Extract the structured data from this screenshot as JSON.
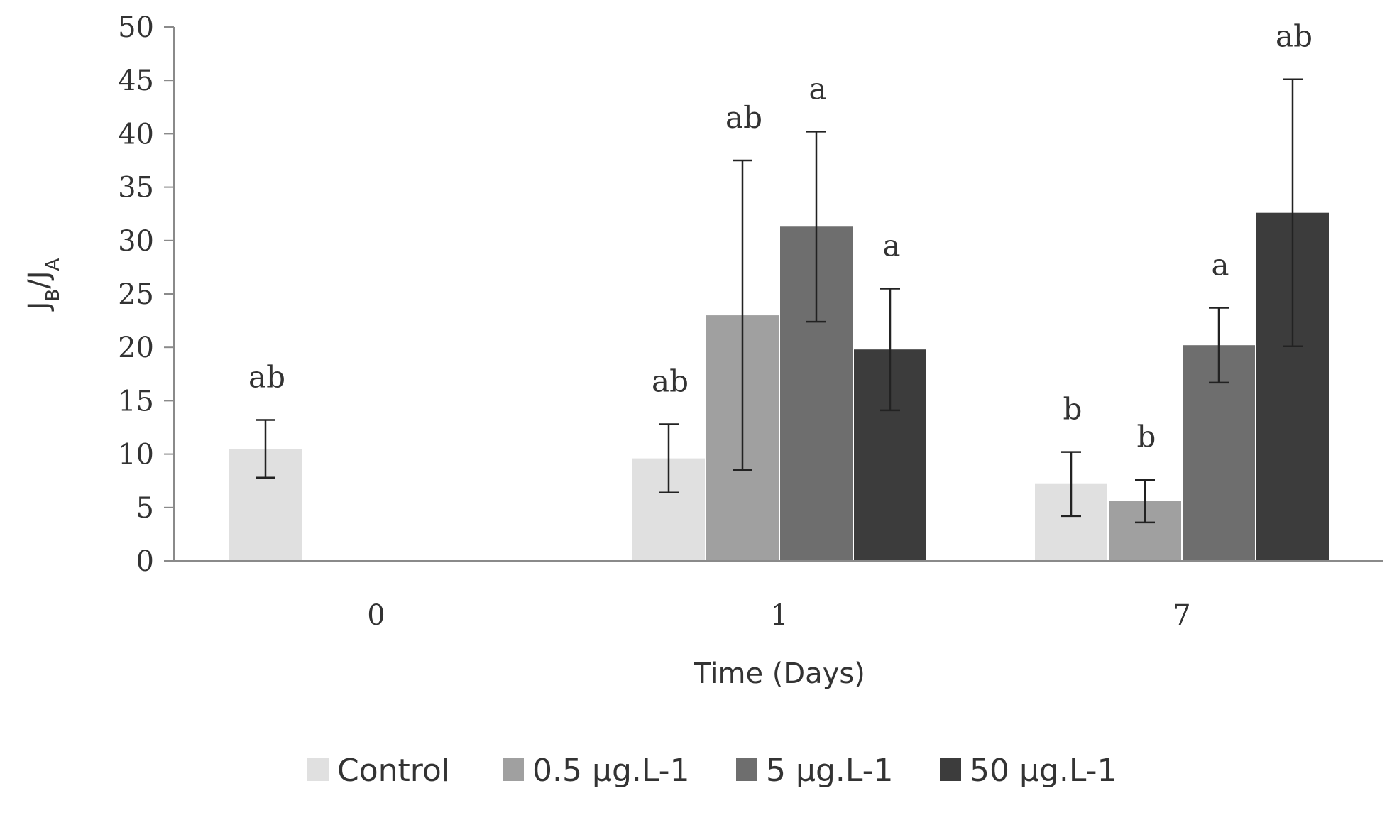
{
  "chart_data": {
    "type": "bar",
    "xlabel": "Time (Days)",
    "ylabel_main": "J",
    "ylabel_sub1": "B",
    "ylabel_slash": "/",
    "ylabel_sub2": "A",
    "ylim": [
      0,
      50
    ],
    "yticks": [
      0,
      5,
      10,
      15,
      20,
      25,
      30,
      35,
      40,
      45,
      50
    ],
    "categories": [
      "0",
      "1",
      "7"
    ],
    "legend_position": "bottom",
    "series": [
      {
        "name": "Control",
        "color": "#e0e0e0",
        "values": [
          10.5,
          9.6,
          7.2
        ],
        "errors": [
          2.7,
          3.2,
          3.0
        ],
        "labels": [
          "ab",
          "ab",
          "b"
        ]
      },
      {
        "name": "0.5 µg.L-1",
        "color": "#a0a0a0",
        "values": [
          null,
          23.0,
          5.6
        ],
        "errors": [
          null,
          14.5,
          2.0
        ],
        "labels": [
          null,
          "ab",
          "b"
        ]
      },
      {
        "name": "5 µg.L-1",
        "color": "#6e6e6e",
        "values": [
          null,
          31.3,
          20.2
        ],
        "errors": [
          null,
          8.9,
          3.5
        ],
        "labels": [
          null,
          "a",
          "a"
        ]
      },
      {
        "name": "50 µg.L-1",
        "color": "#3c3c3c",
        "values": [
          null,
          19.8,
          32.6
        ],
        "errors": [
          null,
          5.7,
          12.5
        ],
        "labels": [
          null,
          "a",
          "ab"
        ]
      }
    ]
  }
}
